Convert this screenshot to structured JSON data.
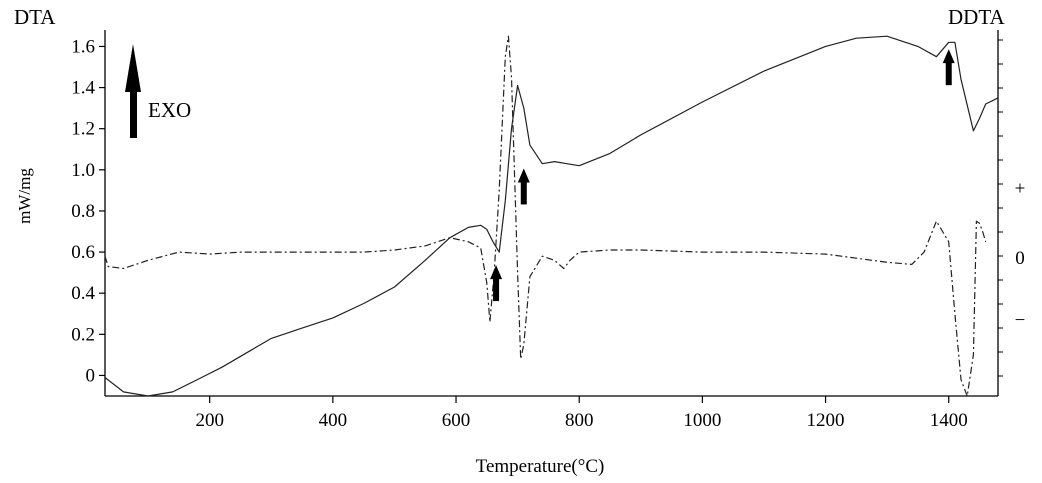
{
  "chart_data": {
    "type": "line",
    "left_title": "DTA",
    "right_title": "DDTA",
    "ylabel": "mW/mg",
    "xlabel": "Temperature(°C)",
    "exo_label": "EXO",
    "xlim": [
      30,
      1480
    ],
    "ylim": [
      -0.1,
      1.68
    ],
    "x_ticks": [
      200,
      400,
      600,
      800,
      1000,
      1200,
      1400
    ],
    "y_ticks": [
      0,
      0.2,
      0.4,
      0.6,
      0.8,
      1.0,
      1.2,
      1.4,
      1.6
    ],
    "y_tick_labels": [
      "0",
      "0.2",
      "0.4",
      "0.6",
      "0.8",
      "1.0",
      "1.2",
      "1.4",
      "1.6"
    ],
    "right_axis_marks": [
      {
        "label": "+",
        "y": 0.91
      },
      {
        "label": "0",
        "y": 0.57
      },
      {
        "label": "−",
        "y": 0.27
      }
    ],
    "grid": false,
    "marker_arrows": [
      {
        "x": 1400,
        "y": 1.47
      },
      {
        "x": 710,
        "y": 0.89
      },
      {
        "x": 665,
        "y": 0.42
      }
    ],
    "series": [
      {
        "style": "solid",
        "x": [
          30,
          60,
          100,
          140,
          180,
          220,
          260,
          300,
          350,
          400,
          450,
          500,
          550,
          590,
          620,
          640,
          650,
          660,
          670,
          680,
          690,
          700,
          710,
          720,
          740,
          760,
          780,
          800,
          850,
          900,
          1000,
          1100,
          1200,
          1250,
          1300,
          1350,
          1380,
          1400,
          1410,
          1420,
          1440,
          1450,
          1460,
          1480
        ],
        "y": [
          -0.01,
          -0.08,
          -0.1,
          -0.08,
          -0.02,
          0.04,
          0.11,
          0.18,
          0.23,
          0.28,
          0.35,
          0.43,
          0.56,
          0.67,
          0.72,
          0.73,
          0.71,
          0.65,
          0.6,
          0.85,
          1.2,
          1.41,
          1.3,
          1.12,
          1.03,
          1.04,
          1.03,
          1.02,
          1.08,
          1.17,
          1.33,
          1.48,
          1.6,
          1.64,
          1.65,
          1.6,
          1.55,
          1.62,
          1.62,
          1.44,
          1.19,
          1.25,
          1.32,
          1.35
        ]
      },
      {
        "style": "dash-dot",
        "x": [
          30,
          35,
          60,
          100,
          150,
          200,
          250,
          300,
          350,
          400,
          450,
          500,
          550,
          590,
          620,
          640,
          650,
          655,
          662,
          670,
          680,
          685,
          690,
          700,
          705,
          710,
          720,
          740,
          760,
          775,
          785,
          800,
          850,
          900,
          1000,
          1100,
          1200,
          1250,
          1300,
          1340,
          1360,
          1380,
          1390,
          1400,
          1410,
          1420,
          1430,
          1440,
          1445,
          1450,
          1455,
          1460
        ],
        "y": [
          0.58,
          0.53,
          0.52,
          0.56,
          0.6,
          0.59,
          0.6,
          0.6,
          0.6,
          0.6,
          0.6,
          0.61,
          0.63,
          0.67,
          0.65,
          0.62,
          0.45,
          0.26,
          0.5,
          0.9,
          1.55,
          1.65,
          1.45,
          0.5,
          0.08,
          0.15,
          0.48,
          0.58,
          0.56,
          0.52,
          0.56,
          0.6,
          0.61,
          0.61,
          0.6,
          0.6,
          0.59,
          0.57,
          0.55,
          0.54,
          0.6,
          0.75,
          0.7,
          0.65,
          0.3,
          -0.02,
          -0.1,
          0.1,
          0.75,
          0.74,
          0.7,
          0.65
        ]
      }
    ]
  }
}
